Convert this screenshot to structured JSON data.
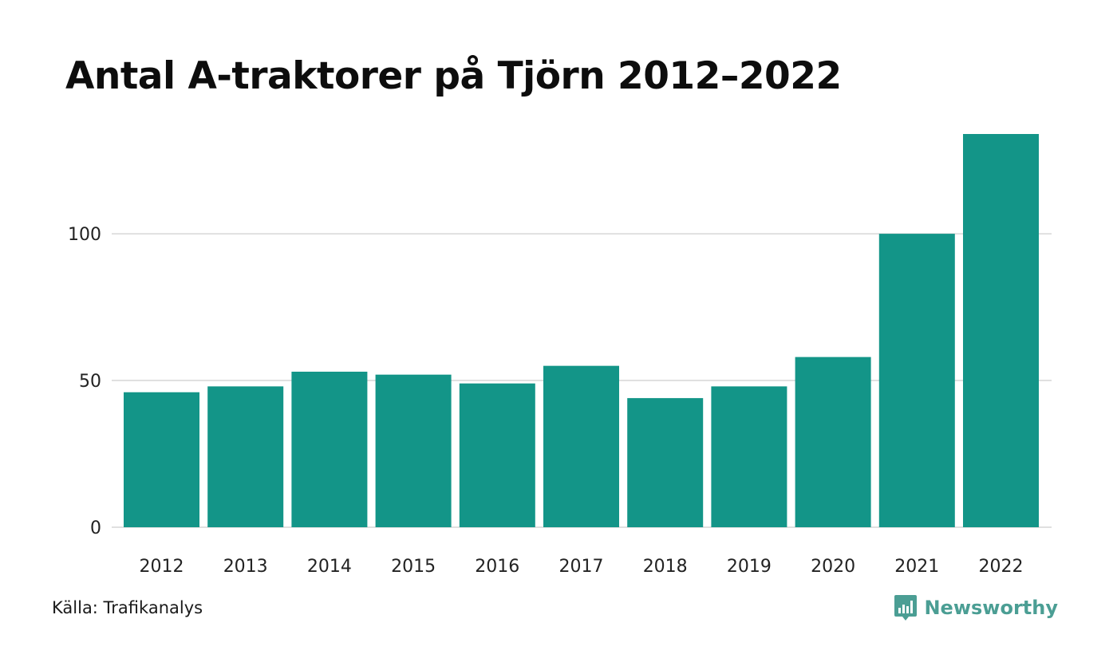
{
  "title": "Antal A-traktorer på Tjörn 2012–2022",
  "source": "Källa: Trafikanalys",
  "brand": {
    "name": "Newsworthy",
    "icon": "newsworthy-logo-icon",
    "color": "#4b9e94"
  },
  "colors": {
    "bar": "#139588",
    "grid": "#e0e0e0"
  },
  "chart_data": {
    "type": "bar",
    "categories": [
      "2012",
      "2013",
      "2014",
      "2015",
      "2016",
      "2017",
      "2018",
      "2019",
      "2020",
      "2021",
      "2022"
    ],
    "values": [
      46,
      48,
      53,
      52,
      49,
      55,
      44,
      48,
      58,
      100,
      134
    ],
    "yticks": [
      0,
      50,
      100
    ],
    "ylim": [
      0,
      134
    ],
    "grid": true,
    "legend": "none"
  }
}
